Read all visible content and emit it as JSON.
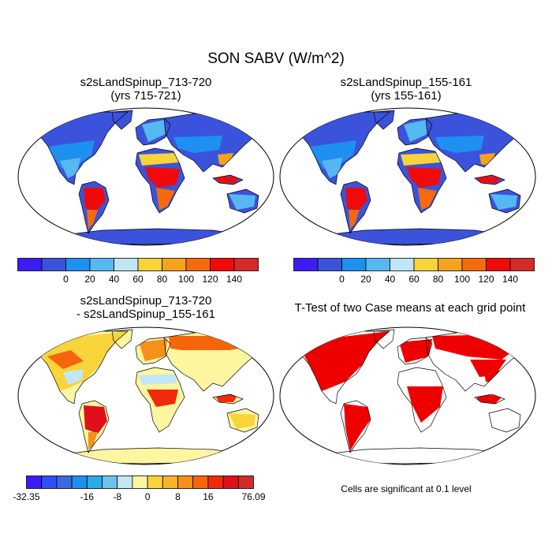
{
  "figure": {
    "title": "SON SABV (W/m^2)"
  },
  "panels": [
    {
      "id": "top-left",
      "title_line1": "s2sLandSpinup_713-720",
      "title_line2": "(yrs 715-721)",
      "field": "absolute"
    },
    {
      "id": "top-right",
      "title_line1": "s2sLandSpinup_155-161",
      "title_line2": "(yrs 155-161)",
      "field": "absolute"
    },
    {
      "id": "bottom-left",
      "title_line1": "s2sLandSpinup_713-720",
      "title_line2": " - s2sLandSpinup_155-161",
      "field": "difference"
    },
    {
      "id": "bottom-right",
      "title_line1": "T-Test of two Case means at each grid point",
      "title_line2": "",
      "field": "significance"
    }
  ],
  "colorbars": {
    "absolute": {
      "colors": [
        "#3c1cf5",
        "#3b53dc",
        "#1e90f0",
        "#56b8f0",
        "#bfe6f5",
        "#f8d33a",
        "#f7a21b",
        "#f56a0c",
        "#f00a0a",
        "#d42a2a"
      ],
      "tick_labels": [
        "0",
        "20",
        "40",
        "60",
        "80",
        "100",
        "120",
        "140"
      ]
    },
    "difference": {
      "colors": [
        "#3c1cf5",
        "#2e4ef7",
        "#3b6ae0",
        "#1e90f0",
        "#2aaae6",
        "#6cc2ee",
        "#c2e6f5",
        "#fdf5a0",
        "#f8d33a",
        "#f7b42a",
        "#f5901b",
        "#f5650c",
        "#f02a0a",
        "#e0101a",
        "#d42a2a"
      ],
      "tick_labels": [
        "-32.35",
        "-16",
        "-8",
        "0",
        "8",
        "16",
        "76.09"
      ]
    }
  },
  "footnote": "Cells are significant at 0.1 level",
  "colors": {
    "ocean": "#ffffff",
    "coastline": "#000000",
    "significant": "#ee0000",
    "antarctica_abs": "#3b53dc",
    "antarctica_diff": "#fdf5a0"
  }
}
